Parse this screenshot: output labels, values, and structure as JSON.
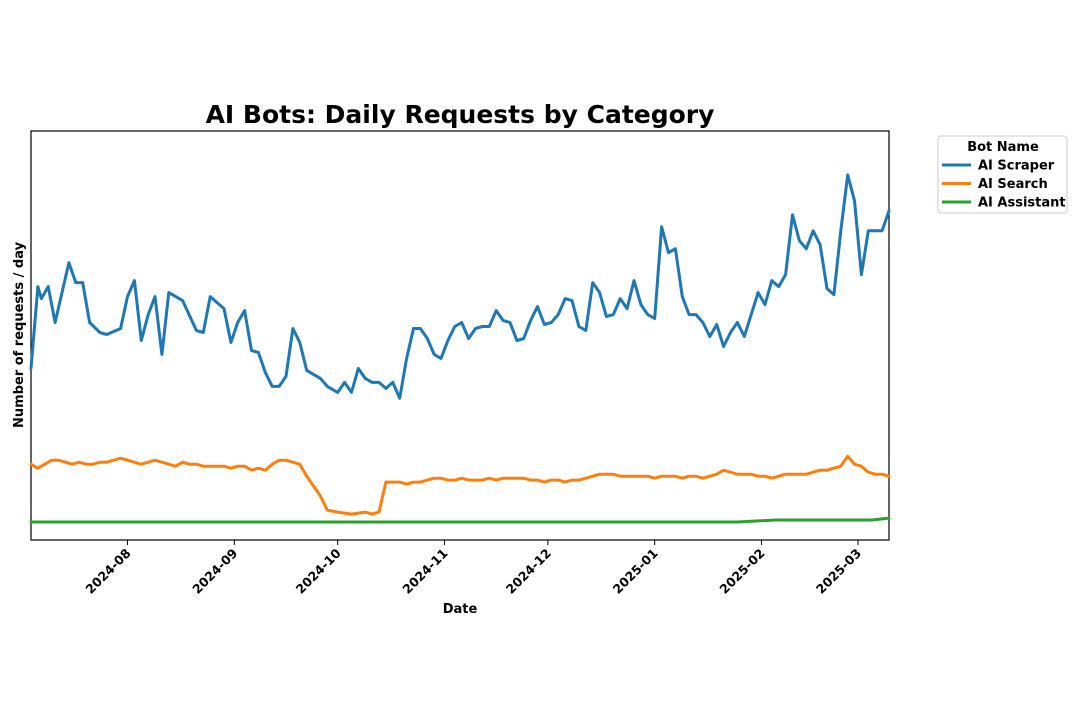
{
  "chart_data": {
    "type": "line",
    "title": "AI Bots: Daily Requests by Category",
    "xlabel": "Date",
    "ylabel": "Number of requests / day",
    "x_range": [
      "2024-07-04",
      "2025-03-10"
    ],
    "y_range": [
      -5,
      200
    ],
    "y_tick_labels": "none",
    "x_ticks": [
      "2024-08",
      "2024-09",
      "2024-10",
      "2024-11",
      "2024-12",
      "2025-01",
      "2025-02",
      "2025-03"
    ],
    "grid": false,
    "legend": {
      "title": "Bot Name",
      "position": "outside-top-right"
    },
    "series": [
      {
        "name": "AI Scraper",
        "color": "#1f77b4",
        "points": [
          [
            "2024-07-04",
            81
          ],
          [
            "2024-07-06",
            122
          ],
          [
            "2024-07-07",
            116
          ],
          [
            "2024-07-09",
            122
          ],
          [
            "2024-07-11",
            104
          ],
          [
            "2024-07-15",
            134
          ],
          [
            "2024-07-17",
            124
          ],
          [
            "2024-07-19",
            124
          ],
          [
            "2024-07-21",
            104
          ],
          [
            "2024-07-24",
            99
          ],
          [
            "2024-07-26",
            98
          ],
          [
            "2024-07-30",
            101
          ],
          [
            "2024-08-01",
            117
          ],
          [
            "2024-08-03",
            125
          ],
          [
            "2024-08-05",
            95
          ],
          [
            "2024-08-07",
            108
          ],
          [
            "2024-08-09",
            117
          ],
          [
            "2024-08-11",
            88
          ],
          [
            "2024-08-13",
            119
          ],
          [
            "2024-08-17",
            115
          ],
          [
            "2024-08-21",
            100
          ],
          [
            "2024-08-23",
            99
          ],
          [
            "2024-08-25",
            117
          ],
          [
            "2024-08-29",
            111
          ],
          [
            "2024-08-31",
            94
          ],
          [
            "2024-09-02",
            104
          ],
          [
            "2024-09-04",
            110
          ],
          [
            "2024-09-06",
            90
          ],
          [
            "2024-09-08",
            89
          ],
          [
            "2024-09-10",
            79
          ],
          [
            "2024-09-12",
            72
          ],
          [
            "2024-09-14",
            72
          ],
          [
            "2024-09-16",
            77
          ],
          [
            "2024-09-18",
            101
          ],
          [
            "2024-09-20",
            94
          ],
          [
            "2024-09-22",
            80
          ],
          [
            "2024-09-24",
            78
          ],
          [
            "2024-09-26",
            76
          ],
          [
            "2024-09-28",
            72
          ],
          [
            "2024-09-30",
            70
          ],
          [
            "2024-10-01",
            69
          ],
          [
            "2024-10-03",
            74
          ],
          [
            "2024-10-05",
            69
          ],
          [
            "2024-10-07",
            81
          ],
          [
            "2024-10-09",
            76
          ],
          [
            "2024-10-11",
            74
          ],
          [
            "2024-10-13",
            74
          ],
          [
            "2024-10-15",
            71
          ],
          [
            "2024-10-17",
            74
          ],
          [
            "2024-10-19",
            66
          ],
          [
            "2024-10-21",
            86
          ],
          [
            "2024-10-23",
            101
          ],
          [
            "2024-10-25",
            101
          ],
          [
            "2024-10-27",
            96
          ],
          [
            "2024-10-29",
            88
          ],
          [
            "2024-10-31",
            86
          ],
          [
            "2024-11-02",
            95
          ],
          [
            "2024-11-04",
            102
          ],
          [
            "2024-11-06",
            104
          ],
          [
            "2024-11-08",
            96
          ],
          [
            "2024-11-10",
            101
          ],
          [
            "2024-11-12",
            102
          ],
          [
            "2024-11-14",
            102
          ],
          [
            "2024-11-16",
            110
          ],
          [
            "2024-11-18",
            105
          ],
          [
            "2024-11-20",
            104
          ],
          [
            "2024-11-22",
            95
          ],
          [
            "2024-11-24",
            96
          ],
          [
            "2024-11-26",
            105
          ],
          [
            "2024-11-28",
            112
          ],
          [
            "2024-11-30",
            103
          ],
          [
            "2024-12-02",
            104
          ],
          [
            "2024-12-04",
            108
          ],
          [
            "2024-12-06",
            116
          ],
          [
            "2024-12-08",
            115
          ],
          [
            "2024-12-10",
            102
          ],
          [
            "2024-12-12",
            100
          ],
          [
            "2024-12-14",
            124
          ],
          [
            "2024-12-16",
            119
          ],
          [
            "2024-12-18",
            107
          ],
          [
            "2024-12-20",
            108
          ],
          [
            "2024-12-22",
            116
          ],
          [
            "2024-12-24",
            111
          ],
          [
            "2024-12-26",
            125
          ],
          [
            "2024-12-28",
            113
          ],
          [
            "2024-12-30",
            108
          ],
          [
            "2025-01-01",
            106
          ],
          [
            "2025-01-03",
            152
          ],
          [
            "2025-01-05",
            139
          ],
          [
            "2025-01-07",
            141
          ],
          [
            "2025-01-09",
            117
          ],
          [
            "2025-01-11",
            108
          ],
          [
            "2025-01-13",
            108
          ],
          [
            "2025-01-15",
            104
          ],
          [
            "2025-01-17",
            97
          ],
          [
            "2025-01-19",
            103
          ],
          [
            "2025-01-21",
            92
          ],
          [
            "2025-01-23",
            99
          ],
          [
            "2025-01-25",
            104
          ],
          [
            "2025-01-27",
            97
          ],
          [
            "2025-01-29",
            108
          ],
          [
            "2025-01-31",
            119
          ],
          [
            "2025-02-02",
            113
          ],
          [
            "2025-02-04",
            125
          ],
          [
            "2025-02-06",
            122
          ],
          [
            "2025-02-08",
            128
          ],
          [
            "2025-02-10",
            158
          ],
          [
            "2025-02-12",
            145
          ],
          [
            "2025-02-14",
            141
          ],
          [
            "2025-02-16",
            150
          ],
          [
            "2025-02-18",
            143
          ],
          [
            "2025-02-20",
            121
          ],
          [
            "2025-02-22",
            118
          ],
          [
            "2025-02-24",
            150
          ],
          [
            "2025-02-26",
            178
          ],
          [
            "2025-02-28",
            165
          ],
          [
            "2025-03-02",
            128
          ],
          [
            "2025-03-04",
            150
          ],
          [
            "2025-03-06",
            150
          ],
          [
            "2025-03-08",
            150
          ],
          [
            "2025-03-10",
            160
          ]
        ]
      },
      {
        "name": "AI Search",
        "color": "#ff7f0e",
        "points": [
          [
            "2024-07-04",
            33
          ],
          [
            "2024-07-06",
            31
          ],
          [
            "2024-07-08",
            33
          ],
          [
            "2024-07-10",
            35
          ],
          [
            "2024-07-12",
            35
          ],
          [
            "2024-07-14",
            34
          ],
          [
            "2024-07-16",
            33
          ],
          [
            "2024-07-18",
            34
          ],
          [
            "2024-07-20",
            33
          ],
          [
            "2024-07-22",
            33
          ],
          [
            "2024-07-24",
            34
          ],
          [
            "2024-07-26",
            34
          ],
          [
            "2024-07-28",
            35
          ],
          [
            "2024-07-30",
            36
          ],
          [
            "2024-08-01",
            35
          ],
          [
            "2024-08-03",
            34
          ],
          [
            "2024-08-05",
            33
          ],
          [
            "2024-08-07",
            34
          ],
          [
            "2024-08-09",
            35
          ],
          [
            "2024-08-11",
            34
          ],
          [
            "2024-08-13",
            33
          ],
          [
            "2024-08-15",
            32
          ],
          [
            "2024-08-17",
            34
          ],
          [
            "2024-08-19",
            33
          ],
          [
            "2024-08-21",
            33
          ],
          [
            "2024-08-23",
            32
          ],
          [
            "2024-08-25",
            32
          ],
          [
            "2024-08-27",
            32
          ],
          [
            "2024-08-29",
            32
          ],
          [
            "2024-08-31",
            31
          ],
          [
            "2024-09-02",
            32
          ],
          [
            "2024-09-04",
            32
          ],
          [
            "2024-09-06",
            30
          ],
          [
            "2024-09-08",
            31
          ],
          [
            "2024-09-10",
            30
          ],
          [
            "2024-09-12",
            33
          ],
          [
            "2024-09-14",
            35
          ],
          [
            "2024-09-16",
            35
          ],
          [
            "2024-09-18",
            34
          ],
          [
            "2024-09-20",
            33
          ],
          [
            "2024-09-22",
            27
          ],
          [
            "2024-09-24",
            22
          ],
          [
            "2024-09-26",
            17
          ],
          [
            "2024-09-28",
            10
          ],
          [
            "2024-10-01",
            9
          ],
          [
            "2024-10-05",
            8
          ],
          [
            "2024-10-09",
            9
          ],
          [
            "2024-10-11",
            8
          ],
          [
            "2024-10-13",
            9
          ],
          [
            "2024-10-15",
            24
          ],
          [
            "2024-10-17",
            24
          ],
          [
            "2024-10-19",
            24
          ],
          [
            "2024-10-21",
            23
          ],
          [
            "2024-10-23",
            24
          ],
          [
            "2024-10-25",
            24
          ],
          [
            "2024-10-27",
            25
          ],
          [
            "2024-10-29",
            26
          ],
          [
            "2024-10-31",
            26
          ],
          [
            "2024-11-02",
            25
          ],
          [
            "2024-11-04",
            25
          ],
          [
            "2024-11-06",
            26
          ],
          [
            "2024-11-08",
            25
          ],
          [
            "2024-11-10",
            25
          ],
          [
            "2024-11-12",
            25
          ],
          [
            "2024-11-14",
            26
          ],
          [
            "2024-11-16",
            25
          ],
          [
            "2024-11-18",
            26
          ],
          [
            "2024-11-20",
            26
          ],
          [
            "2024-11-22",
            26
          ],
          [
            "2024-11-24",
            26
          ],
          [
            "2024-11-26",
            25
          ],
          [
            "2024-11-28",
            25
          ],
          [
            "2024-11-30",
            24
          ],
          [
            "2024-12-02",
            25
          ],
          [
            "2024-12-04",
            25
          ],
          [
            "2024-12-06",
            24
          ],
          [
            "2024-12-08",
            25
          ],
          [
            "2024-12-10",
            25
          ],
          [
            "2024-12-12",
            26
          ],
          [
            "2024-12-14",
            27
          ],
          [
            "2024-12-16",
            28
          ],
          [
            "2024-12-18",
            28
          ],
          [
            "2024-12-20",
            28
          ],
          [
            "2024-12-22",
            27
          ],
          [
            "2024-12-24",
            27
          ],
          [
            "2024-12-26",
            27
          ],
          [
            "2024-12-28",
            27
          ],
          [
            "2024-12-30",
            27
          ],
          [
            "2025-01-01",
            26
          ],
          [
            "2025-01-03",
            27
          ],
          [
            "2025-01-05",
            27
          ],
          [
            "2025-01-07",
            27
          ],
          [
            "2025-01-09",
            26
          ],
          [
            "2025-01-11",
            27
          ],
          [
            "2025-01-13",
            27
          ],
          [
            "2025-01-15",
            26
          ],
          [
            "2025-01-17",
            27
          ],
          [
            "2025-01-19",
            28
          ],
          [
            "2025-01-21",
            30
          ],
          [
            "2025-01-23",
            29
          ],
          [
            "2025-01-25",
            28
          ],
          [
            "2025-01-27",
            28
          ],
          [
            "2025-01-29",
            28
          ],
          [
            "2025-01-31",
            27
          ],
          [
            "2025-02-02",
            27
          ],
          [
            "2025-02-04",
            26
          ],
          [
            "2025-02-06",
            27
          ],
          [
            "2025-02-08",
            28
          ],
          [
            "2025-02-10",
            28
          ],
          [
            "2025-02-12",
            28
          ],
          [
            "2025-02-14",
            28
          ],
          [
            "2025-02-16",
            29
          ],
          [
            "2025-02-18",
            30
          ],
          [
            "2025-02-20",
            30
          ],
          [
            "2025-02-22",
            31
          ],
          [
            "2025-02-24",
            32
          ],
          [
            "2025-02-26",
            37
          ],
          [
            "2025-02-28",
            33
          ],
          [
            "2025-03-02",
            32
          ],
          [
            "2025-03-04",
            29
          ],
          [
            "2025-03-06",
            28
          ],
          [
            "2025-03-08",
            28
          ],
          [
            "2025-03-10",
            27
          ]
        ]
      },
      {
        "name": "AI Assistant",
        "color": "#2ca02c",
        "points": [
          [
            "2024-07-04",
            4
          ],
          [
            "2024-07-20",
            4
          ],
          [
            "2024-08-05",
            4
          ],
          [
            "2024-08-25",
            4
          ],
          [
            "2024-09-10",
            4
          ],
          [
            "2024-09-25",
            4
          ],
          [
            "2024-10-10",
            4
          ],
          [
            "2024-10-25",
            4
          ],
          [
            "2024-11-10",
            4
          ],
          [
            "2024-11-25",
            4
          ],
          [
            "2024-12-10",
            4
          ],
          [
            "2024-12-25",
            4
          ],
          [
            "2025-01-10",
            4
          ],
          [
            "2025-01-25",
            4
          ],
          [
            "2025-02-05",
            5
          ],
          [
            "2025-02-15",
            5
          ],
          [
            "2025-02-25",
            5
          ],
          [
            "2025-03-01",
            5
          ],
          [
            "2025-03-05",
            5
          ],
          [
            "2025-03-10",
            6
          ]
        ]
      }
    ]
  }
}
